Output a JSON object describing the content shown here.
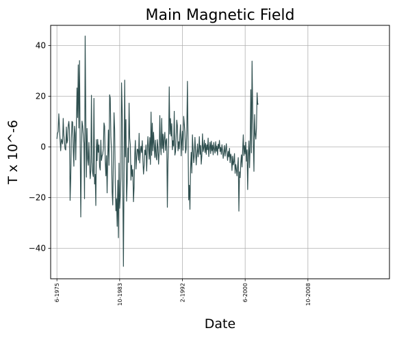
{
  "chart_data": {
    "type": "line",
    "title": "Main Magnetic Field",
    "xlabel": "Date",
    "ylabel": "T x 10^-6",
    "x_tick_labels": [
      "6-1975",
      "10-1983",
      "2-1992",
      "6-2000",
      "10-2008"
    ],
    "x_tick_values": [
      "1975-06",
      "1983-10",
      "1992-02",
      "2000-06",
      "2008-10"
    ],
    "y_tick_labels": [
      "40",
      "20",
      "0",
      "−20",
      "−40"
    ],
    "y_tick_values": [
      40,
      20,
      0,
      -20,
      -40
    ],
    "xlim": [
      "1974-08",
      "2019-08"
    ],
    "ylim": [
      -52,
      48
    ],
    "grid": true,
    "line_color": "#2f4f4f",
    "series": [
      {
        "x_start": "1975-06",
        "x_step_months": 1,
        "values": [
          3.2,
          5.4,
          6.1,
          13.1,
          8.0,
          2.9,
          -1.5,
          3.1,
          2.2,
          1.2,
          11.3,
          4.9,
          2.0,
          -0.8,
          -1.2,
          7.9,
          1.5,
          2.6,
          8.4,
          10.1,
          6.8,
          -21.1,
          -12.4,
          3.2,
          10.1,
          9.8,
          -0.9,
          -7.6,
          8.2,
          5.5,
          -5.1,
          8.7,
          23.3,
          11.6,
          32.4,
          7.5,
          34.1,
          3.2,
          -27.6,
          -3.1,
          10.2,
          8.4,
          4.9,
          1.6,
          -20.4,
          43.8,
          12.6,
          -11.9,
          7.3,
          -4.7,
          -7.2,
          1.8,
          -6.6,
          -12.5,
          -9.2,
          20.4,
          -6.1,
          -10.3,
          -11.7,
          19.2,
          -14.6,
          -10.8,
          -23.1,
          2.9,
          -5.4,
          3.0,
          -2.1,
          0.8,
          -7.8,
          -9.1,
          2.7,
          -5.3,
          -3.5,
          -2.9,
          -0.6,
          9.5,
          8.2,
          -5.6,
          -11.4,
          -3.4,
          -18.1,
          -4.2,
          6.7,
          -7.2,
          20.6,
          19.4,
          4.3,
          -2.1,
          -17.8,
          -22.9,
          -3.8,
          13.5,
          7.1,
          -14.1,
          -25.2,
          -20.4,
          -31.3,
          -13.1,
          -35.8,
          -6.4,
          -24.2,
          -19.3,
          -12.1,
          25.3,
          14.4,
          -15.7,
          -47.1,
          -11.2,
          26.4,
          -3.9,
          10.8,
          -21.4,
          -14.2,
          -0.4,
          -6.1,
          17.3,
          3.5,
          0.9,
          -13.1,
          -7.2,
          -11.6,
          -8.9,
          -21.6,
          -15.8,
          -3.4,
          2.6,
          -8.7,
          -4.2,
          -0.8,
          -1.1,
          -5.2,
          5.4,
          -6.3,
          -1.8,
          0.3,
          -2.2,
          2.5,
          -5.1,
          -10.7,
          -7.4,
          -1.2,
          -3.1,
          0.8,
          -9.5,
          -2.3,
          4.1,
          -0.6,
          -4.8,
          3.7,
          -6.9,
          13.8,
          -3.3,
          9.4,
          -1.5,
          5.8,
          1.0,
          -4.2,
          2.7,
          -3.6,
          -5.1,
          2.9,
          -0.4,
          -6.8,
          -1.9,
          12.4,
          0.9,
          -3.1,
          11.3,
          -0.6,
          5.1,
          -2.2,
          3.7,
          5.8,
          -1.4,
          2.6,
          3.3,
          -23.8,
          -5.6,
          1.8,
          23.7,
          5.1,
          11.2,
          4.3,
          9.2,
          -1.1,
          2.5,
          0.4,
          14.1,
          -3.2,
          -1.9,
          3.8,
          10.6,
          8.4,
          -1.5,
          2.1,
          -0.8,
          4.6,
          8.8,
          -3.5,
          2.7,
          6.2,
          -1.3,
          12.1,
          9.1,
          5.8,
          -2.4,
          -0.9,
          6.9,
          25.9,
          1.8,
          -20.9,
          -15.1,
          -24.6,
          -8.1,
          -2.1,
          -10.3,
          4.8,
          -0.9,
          -6.2,
          -3.1,
          3.8,
          -1.9,
          -7.1,
          -2.6,
          1.2,
          -3.9,
          -1.4,
          4.1,
          -2.9,
          0.6,
          -6.8,
          -3.3,
          5.2,
          -1.8,
          -0.4,
          2.7,
          -2.2,
          1.4,
          -2.9,
          0.8,
          -1.1,
          3.5,
          -3.8,
          -0.3,
          1.9,
          -2.6,
          2.3,
          -1.5,
          0.7,
          -3.1,
          1.8,
          -0.8,
          -2.4,
          2.1,
          -1.7,
          0.4,
          -3.2,
          1.1,
          -0.6,
          2.6,
          -1.8,
          -0.2,
          -2.9,
          0.9,
          -1.4,
          -4.5,
          -2.1,
          0.6,
          -3.6,
          -1.2,
          1.3,
          -2.4,
          -5.3,
          -1.7,
          -3.9,
          -0.5,
          -6.2,
          -2.8,
          -4.1,
          -9.3,
          -3.6,
          -7.1,
          -5.8,
          -2.6,
          -10.4,
          -6.9,
          -8.8,
          -11.4,
          -7.6,
          -4.2,
          -25.3,
          -9.8,
          -12.1,
          -6.4,
          -3.1,
          -7.9,
          -1.2,
          4.8,
          -3.4,
          0.5,
          -2.8,
          1.9,
          -5.6,
          -1.1,
          -16.8,
          -3.7,
          2.4,
          -8.2,
          1.1,
          22.6,
          -2.3,
          33.9,
          15.1,
          1.4,
          -9.6,
          12.8,
          5.2,
          3.1,
          7.4,
          21.4,
          16.8,
          17.1
        ]
      }
    ]
  }
}
